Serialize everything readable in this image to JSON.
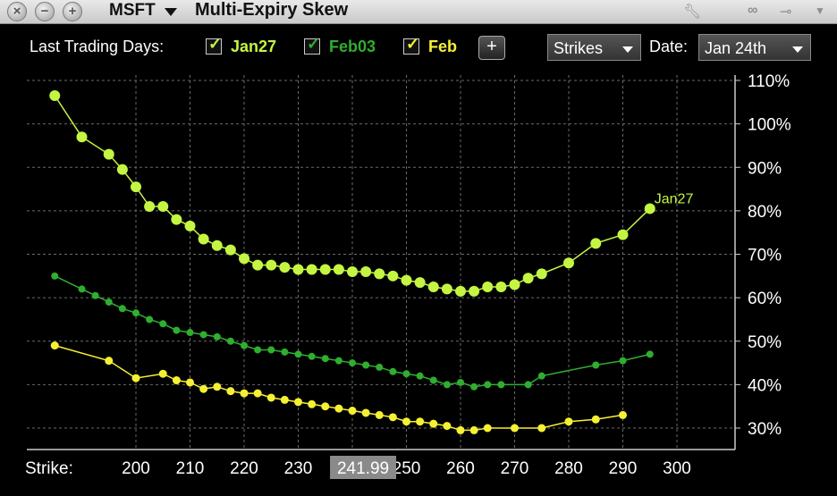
{
  "window": {
    "symbol": "MSFT",
    "title": "Multi-Expiry Skew"
  },
  "controls": {
    "last_trading_days_label": "Last Trading Days:",
    "add_button_label": "+",
    "strikes_dropdown": "Strikes",
    "date_label": "Date:",
    "date_value": "Jan 24th",
    "strike_label": "Strike:",
    "current_price_label": "241.99"
  },
  "colors": {
    "jan27": "#c4f542",
    "feb03": "#2fae2f",
    "feb": "#f5f033",
    "grid": "#6a6a6a",
    "current_price_box": "#8a8a8a"
  },
  "icons": [
    "close-icon",
    "minimize-icon",
    "maximize-icon",
    "wrench-icon",
    "link-icon",
    "pin-icon",
    "menu-icon"
  ],
  "chart_data": {
    "type": "line",
    "x_ticks": [
      "200",
      "210",
      "220",
      "230",
      "240",
      "250",
      "260",
      "270",
      "280",
      "290",
      "300"
    ],
    "y_ticks": [
      "30%",
      "40%",
      "50%",
      "60%",
      "70%",
      "80%",
      "90%",
      "100%",
      "110%"
    ],
    "xlim": [
      190,
      303
    ],
    "ylim": [
      25,
      112
    ],
    "grid": true,
    "current_price": 241.99,
    "series": [
      {
        "name": "Jan27",
        "end_label": "Jan27",
        "color": "#c4f542",
        "points": [
          [
            185,
            106.5
          ],
          [
            190,
            97
          ],
          [
            195,
            93
          ],
          [
            197.5,
            89.5
          ],
          [
            200,
            85.5
          ],
          [
            202.5,
            81
          ],
          [
            205,
            81
          ],
          [
            207.5,
            78
          ],
          [
            210,
            76.5
          ],
          [
            212.5,
            73.5
          ],
          [
            215,
            72
          ],
          [
            217.5,
            71
          ],
          [
            220,
            69
          ],
          [
            222.5,
            67.5
          ],
          [
            225,
            67.5
          ],
          [
            227.5,
            67
          ],
          [
            230,
            66.5
          ],
          [
            232.5,
            66.5
          ],
          [
            235,
            66.5
          ],
          [
            237.5,
            66.5
          ],
          [
            240,
            66
          ],
          [
            242.5,
            66
          ],
          [
            245,
            65.5
          ],
          [
            247.5,
            65
          ],
          [
            250,
            64
          ],
          [
            252.5,
            63.5
          ],
          [
            255,
            62.5
          ],
          [
            257.5,
            62
          ],
          [
            260,
            61.5
          ],
          [
            262.5,
            61.5
          ],
          [
            265,
            62.5
          ],
          [
            267.5,
            62.5
          ],
          [
            270,
            63
          ],
          [
            272.5,
            64.5
          ],
          [
            275,
            65.5
          ],
          [
            280,
            68
          ],
          [
            285,
            72.5
          ],
          [
            290,
            74.5
          ],
          [
            295,
            80.5
          ]
        ]
      },
      {
        "name": "Feb03",
        "color": "#2fae2f",
        "points": [
          [
            185,
            65
          ],
          [
            190,
            62
          ],
          [
            192.5,
            60.5
          ],
          [
            195,
            59
          ],
          [
            197.5,
            57.5
          ],
          [
            200,
            56.5
          ],
          [
            202.5,
            55
          ],
          [
            205,
            54
          ],
          [
            207.5,
            52.5
          ],
          [
            210,
            52
          ],
          [
            212.5,
            51.5
          ],
          [
            215,
            51
          ],
          [
            217.5,
            50
          ],
          [
            220,
            49
          ],
          [
            222.5,
            48
          ],
          [
            225,
            48
          ],
          [
            227.5,
            47.5
          ],
          [
            230,
            47
          ],
          [
            232.5,
            46.5
          ],
          [
            235,
            46
          ],
          [
            237.5,
            45.5
          ],
          [
            240,
            45
          ],
          [
            242.5,
            44.5
          ],
          [
            245,
            44
          ],
          [
            247.5,
            43
          ],
          [
            250,
            42.5
          ],
          [
            252.5,
            42
          ],
          [
            255,
            41
          ],
          [
            257.5,
            40
          ],
          [
            260,
            40.5
          ],
          [
            262.5,
            39.5
          ],
          [
            265,
            40
          ],
          [
            267.5,
            40
          ],
          [
            272.5,
            40
          ],
          [
            275,
            42
          ],
          [
            285,
            44.5
          ],
          [
            290,
            45.5
          ],
          [
            295,
            47
          ]
        ]
      },
      {
        "name": "Feb",
        "color": "#f5f033",
        "points": [
          [
            185,
            49
          ],
          [
            195,
            45.5
          ],
          [
            200,
            41.5
          ],
          [
            205,
            42.5
          ],
          [
            207.5,
            41
          ],
          [
            210,
            40.5
          ],
          [
            212.5,
            39
          ],
          [
            215,
            39.5
          ],
          [
            217.5,
            38.5
          ],
          [
            220,
            38
          ],
          [
            222.5,
            38
          ],
          [
            225,
            37
          ],
          [
            227.5,
            36.5
          ],
          [
            230,
            36
          ],
          [
            232.5,
            35.5
          ],
          [
            235,
            35
          ],
          [
            237.5,
            34.5
          ],
          [
            240,
            34
          ],
          [
            242.5,
            33.5
          ],
          [
            245,
            33
          ],
          [
            247.5,
            32.5
          ],
          [
            250,
            31.5
          ],
          [
            252.5,
            31.5
          ],
          [
            255,
            31
          ],
          [
            257.5,
            30.5
          ],
          [
            260,
            29.5
          ],
          [
            262.5,
            29.5
          ],
          [
            265,
            30
          ],
          [
            270,
            30
          ],
          [
            275,
            30
          ],
          [
            280,
            31.5
          ],
          [
            285,
            32
          ],
          [
            290,
            33
          ]
        ]
      }
    ]
  }
}
